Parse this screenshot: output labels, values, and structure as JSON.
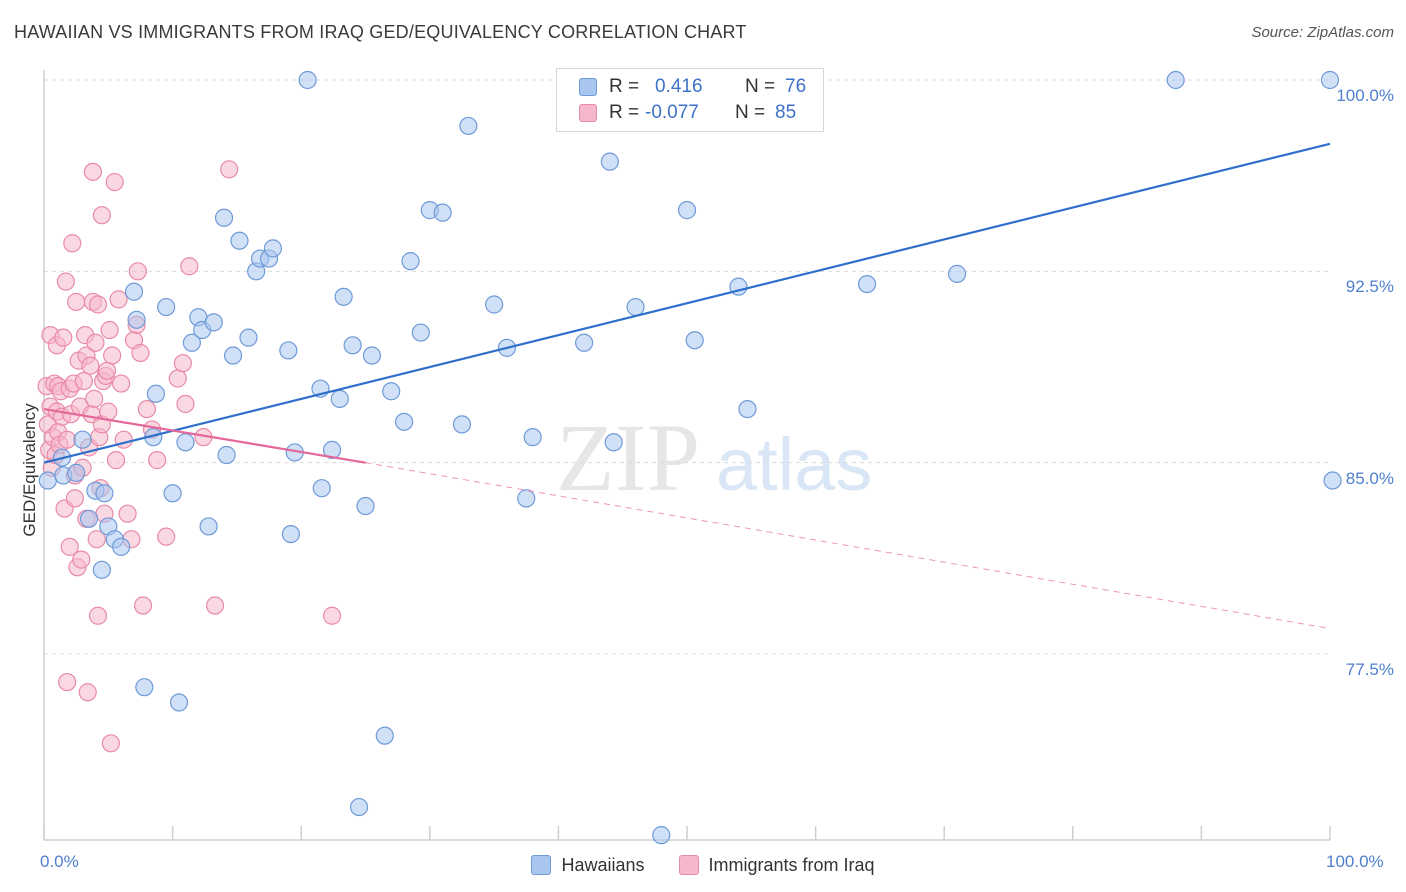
{
  "title": "HAWAIIAN VS IMMIGRANTS FROM IRAQ GED/EQUIVALENCY CORRELATION CHART",
  "source": "Source: ZipAtlas.com",
  "watermark": {
    "zip": "ZIP",
    "atlas": "atlas"
  },
  "legend_top": {
    "rows": [
      {
        "r_label": "R =",
        "r_value": "0.416",
        "n_label": "N =",
        "n_value": "76"
      },
      {
        "r_label": "R =",
        "r_value": "-0.077",
        "n_label": "N =",
        "n_value": "85"
      }
    ]
  },
  "legend_bottom": {
    "items": [
      "Hawaiians",
      "Immigrants from Iraq"
    ]
  },
  "colors": {
    "blue_fill": "#a9c6ee",
    "blue_stroke": "#6f9ad8",
    "blue_line": "#2f6fcc",
    "pink_fill": "#f5b8cb",
    "pink_stroke": "#e98aa9",
    "pink_line": "#e4689a",
    "tick_text": "#4f7fcf",
    "grid": "#dcdcdc"
  },
  "chart_data": {
    "type": "scatter",
    "title": "HAWAIIAN VS IMMIGRANTS FROM IRAQ GED/EQUIVALENCY CORRELATION CHART",
    "xlabel": "",
    "ylabel": "GED/Equivalency",
    "xlim": [
      0,
      100
    ],
    "ylim": [
      70.5,
      101.5
    ],
    "x_tick_labels": [
      "0.0%",
      "100.0%"
    ],
    "y_ticks": [
      77.5,
      85.0,
      92.5,
      100.0
    ],
    "y_tick_labels": [
      "77.5%",
      "85.0%",
      "92.5%",
      "100.0%"
    ],
    "grid": "horizontal dashed",
    "legend_placement": "bottom",
    "series": [
      {
        "name": "Hawaiians",
        "r": 0.416,
        "n": 76,
        "trend": {
          "x": [
            0,
            100
          ],
          "y": [
            85.0,
            97.5
          ],
          "style": "solid"
        },
        "points": [
          [
            0.3,
            84.3
          ],
          [
            1.5,
            84.5
          ],
          [
            1.4,
            85.2
          ],
          [
            2.5,
            84.6
          ],
          [
            3,
            85.9
          ],
          [
            3.5,
            82.8
          ],
          [
            4,
            83.9
          ],
          [
            4.5,
            80.8
          ],
          [
            4.7,
            83.8
          ],
          [
            5,
            82.5
          ],
          [
            5.5,
            82.0
          ],
          [
            6,
            81.7
          ],
          [
            7,
            91.7
          ],
          [
            7.2,
            90.6
          ],
          [
            7.8,
            76.2
          ],
          [
            8.5,
            86.0
          ],
          [
            8.7,
            87.7
          ],
          [
            9.5,
            91.1
          ],
          [
            10,
            83.8
          ],
          [
            10.5,
            75.6
          ],
          [
            11,
            85.8
          ],
          [
            11.5,
            89.7
          ],
          [
            12,
            90.7
          ],
          [
            12.3,
            90.2
          ],
          [
            12.8,
            82.5
          ],
          [
            13.2,
            90.5
          ],
          [
            14,
            94.6
          ],
          [
            14.2,
            85.3
          ],
          [
            14.7,
            89.2
          ],
          [
            15.2,
            93.7
          ],
          [
            15.9,
            89.9
          ],
          [
            16.5,
            92.5
          ],
          [
            16.8,
            93.0
          ],
          [
            17.5,
            93.0
          ],
          [
            17.8,
            93.4
          ],
          [
            19,
            89.4
          ],
          [
            19.2,
            82.2
          ],
          [
            19.5,
            85.4
          ],
          [
            20.5,
            100.0
          ],
          [
            21.5,
            87.9
          ],
          [
            21.6,
            84.0
          ],
          [
            22.4,
            85.5
          ],
          [
            23,
            87.5
          ],
          [
            23.3,
            91.5
          ],
          [
            24,
            89.6
          ],
          [
            24.5,
            71.5
          ],
          [
            25,
            83.3
          ],
          [
            25.5,
            89.2
          ],
          [
            26.5,
            74.3
          ],
          [
            27,
            87.8
          ],
          [
            28,
            86.6
          ],
          [
            28.5,
            92.9
          ],
          [
            29.3,
            90.1
          ],
          [
            30,
            94.9
          ],
          [
            31,
            94.8
          ],
          [
            32.5,
            86.5
          ],
          [
            33,
            98.2
          ],
          [
            35,
            91.2
          ],
          [
            36,
            89.5
          ],
          [
            37.5,
            83.6
          ],
          [
            38,
            86.0
          ],
          [
            42,
            89.7
          ],
          [
            44,
            96.8
          ],
          [
            44.3,
            85.8
          ],
          [
            46,
            91.1
          ],
          [
            48,
            70.4
          ],
          [
            48.5,
            100.0
          ],
          [
            50,
            94.9
          ],
          [
            50.6,
            89.8
          ],
          [
            54,
            91.9
          ],
          [
            54.7,
            87.1
          ],
          [
            64,
            92.0
          ],
          [
            71,
            92.4
          ],
          [
            88,
            100.0
          ],
          [
            100,
            100.0
          ],
          [
            100.2,
            84.3
          ]
        ]
      },
      {
        "name": "Immigrants from Iraq",
        "r": -0.077,
        "n": 85,
        "trend": {
          "x": [
            0,
            25,
            100
          ],
          "y": [
            87.1,
            85.0,
            78.5
          ],
          "style": "solid to 25, dashed beyond"
        },
        "points": [
          [
            0.2,
            88.0
          ],
          [
            0.3,
            86.5
          ],
          [
            0.4,
            85.5
          ],
          [
            0.5,
            87.2
          ],
          [
            0.5,
            90.0
          ],
          [
            0.6,
            84.8
          ],
          [
            0.7,
            86.0
          ],
          [
            0.8,
            88.1
          ],
          [
            0.9,
            85.3
          ],
          [
            1.0,
            87.0
          ],
          [
            1.0,
            89.6
          ],
          [
            1.1,
            88.0
          ],
          [
            1.1,
            86.2
          ],
          [
            1.2,
            85.7
          ],
          [
            1.3,
            87.8
          ],
          [
            1.4,
            86.8
          ],
          [
            1.5,
            89.9
          ],
          [
            1.6,
            83.2
          ],
          [
            1.7,
            92.1
          ],
          [
            1.8,
            85.9
          ],
          [
            1.8,
            76.4
          ],
          [
            2.0,
            87.9
          ],
          [
            2.0,
            81.7
          ],
          [
            2.1,
            86.9
          ],
          [
            2.2,
            93.6
          ],
          [
            2.3,
            88.1
          ],
          [
            2.4,
            84.5
          ],
          [
            2.4,
            83.6
          ],
          [
            2.5,
            91.3
          ],
          [
            2.6,
            80.9
          ],
          [
            2.7,
            89.0
          ],
          [
            2.8,
            87.2
          ],
          [
            2.9,
            81.2
          ],
          [
            3.0,
            84.8
          ],
          [
            3.1,
            88.2
          ],
          [
            3.2,
            90.0
          ],
          [
            3.3,
            89.2
          ],
          [
            3.3,
            82.8
          ],
          [
            3.4,
            76.0
          ],
          [
            3.5,
            85.6
          ],
          [
            3.6,
            88.8
          ],
          [
            3.7,
            86.9
          ],
          [
            3.8,
            91.3
          ],
          [
            3.8,
            96.4
          ],
          [
            3.9,
            87.5
          ],
          [
            4.0,
            89.7
          ],
          [
            4.1,
            82.0
          ],
          [
            4.2,
            79.0
          ],
          [
            4.2,
            91.2
          ],
          [
            4.3,
            86.0
          ],
          [
            4.4,
            84.0
          ],
          [
            4.5,
            86.5
          ],
          [
            4.5,
            94.7
          ],
          [
            4.6,
            88.2
          ],
          [
            4.7,
            83.0
          ],
          [
            4.8,
            88.4
          ],
          [
            4.9,
            88.6
          ],
          [
            5.0,
            87.0
          ],
          [
            5.1,
            90.2
          ],
          [
            5.2,
            74.0
          ],
          [
            5.3,
            89.2
          ],
          [
            5.5,
            96.0
          ],
          [
            5.6,
            85.1
          ],
          [
            5.8,
            91.4
          ],
          [
            6.0,
            88.1
          ],
          [
            6.2,
            85.9
          ],
          [
            6.5,
            83.0
          ],
          [
            6.8,
            82.0
          ],
          [
            7.0,
            89.8
          ],
          [
            7.2,
            90.4
          ],
          [
            7.3,
            92.5
          ],
          [
            7.5,
            89.3
          ],
          [
            7.7,
            79.4
          ],
          [
            8.0,
            87.1
          ],
          [
            8.4,
            86.3
          ],
          [
            8.8,
            85.1
          ],
          [
            9.5,
            82.1
          ],
          [
            10.4,
            88.3
          ],
          [
            10.8,
            88.9
          ],
          [
            11,
            87.3
          ],
          [
            11.3,
            92.7
          ],
          [
            12.4,
            86.0
          ],
          [
            13.3,
            79.4
          ],
          [
            14.4,
            96.5
          ],
          [
            22.4,
            79.0
          ]
        ]
      }
    ]
  }
}
